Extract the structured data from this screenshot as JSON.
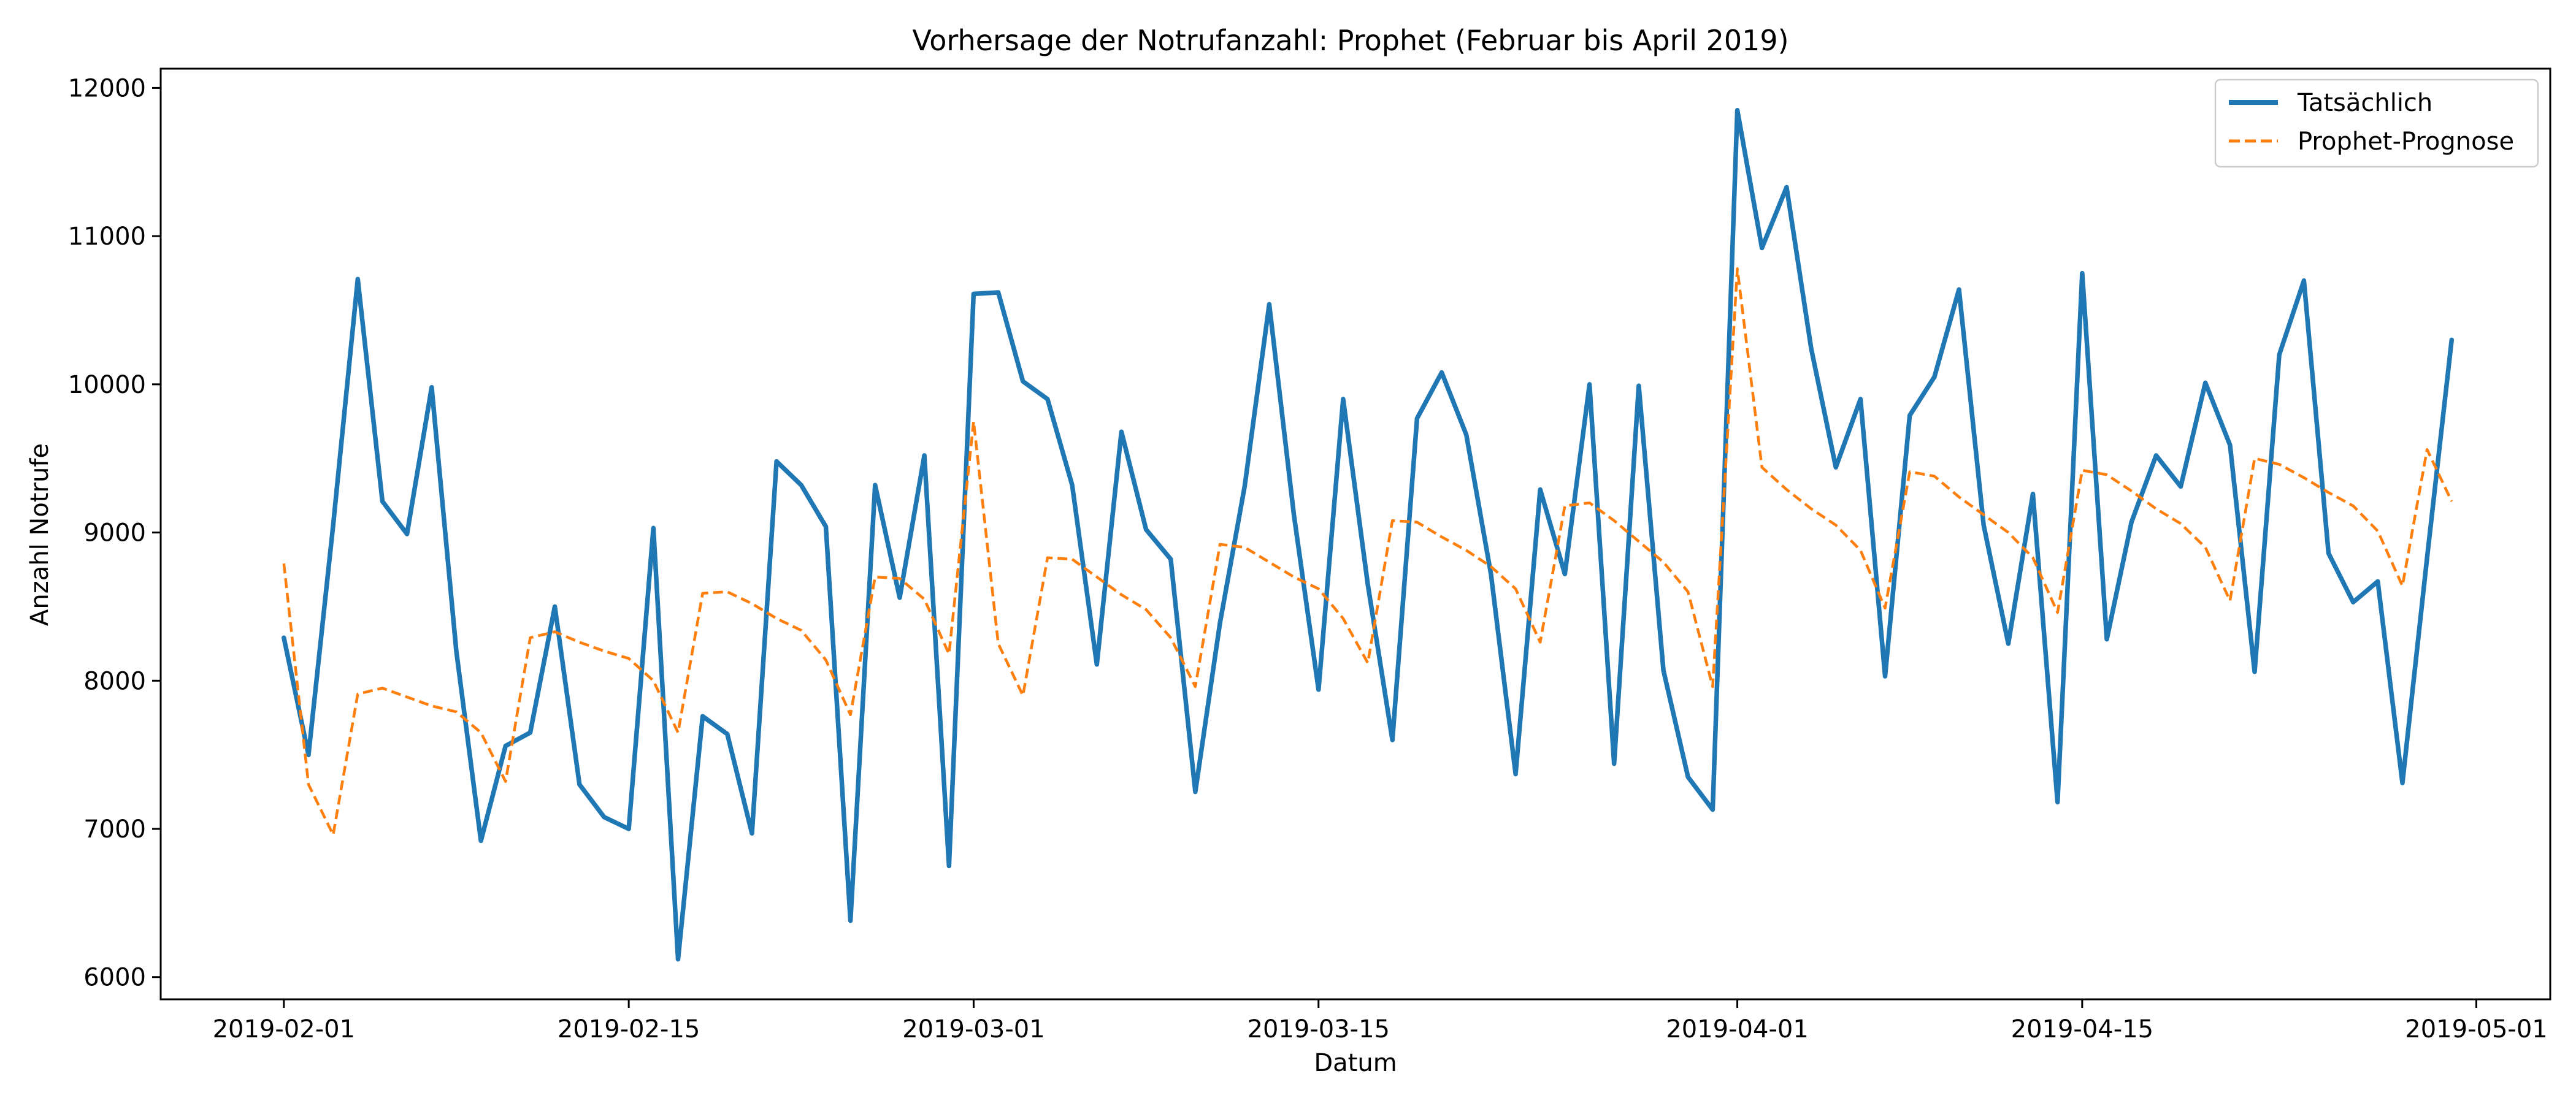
{
  "chart_data": {
    "type": "line",
    "title": "Vorhersage der Notrufanzahl: Prophet (Februar bis April 2019)",
    "xlabel": "Datum",
    "ylabel": "Anzahl Notrufe",
    "x_start": "2019-02-01",
    "x_ticks": [
      "2019-02-01",
      "2019-02-15",
      "2019-03-01",
      "2019-03-15",
      "2019-04-01",
      "2019-04-15",
      "2019-05-01"
    ],
    "y_ticks": [
      6000,
      7000,
      8000,
      9000,
      10000,
      11000,
      12000
    ],
    "xlim": [
      "2019-01-27",
      "2019-05-04"
    ],
    "ylim": [
      5850,
      12130
    ],
    "grid": false,
    "legend_position": "top-right",
    "series": [
      {
        "name": "Tatsächlich",
        "color": "#1f77b4",
        "style": "solid",
        "values": [
          8290,
          7500,
          9050,
          10710,
          9210,
          8990,
          9980,
          8200,
          6920,
          7560,
          7650,
          8500,
          7300,
          7080,
          7000,
          9030,
          6120,
          7760,
          7640,
          6970,
          9480,
          9320,
          9040,
          6380,
          9320,
          8560,
          9520,
          6750,
          10610,
          10620,
          10020,
          9900,
          9320,
          8110,
          9680,
          9020,
          8820,
          7250,
          8390,
          9310,
          10540,
          9120,
          7940,
          9900,
          8650,
          7600,
          9770,
          10080,
          9660,
          8720,
          7370,
          9290,
          8720,
          10000,
          7440,
          9990,
          8070,
          7350,
          7130,
          11850,
          10920,
          11330,
          10240,
          9440,
          9900,
          8030,
          9790,
          10050,
          10640,
          9050,
          8250,
          9260,
          7180,
          10750,
          8280,
          9070,
          9520,
          9310,
          10010,
          9590,
          8060,
          10200,
          10700,
          8860,
          8530,
          8670,
          7310,
          8830,
          10300
        ]
      },
      {
        "name": "Prophet-Prognose",
        "color": "#ff7f0e",
        "style": "dashed",
        "values": [
          8790,
          7300,
          6960,
          7910,
          7950,
          7890,
          7830,
          7790,
          7650,
          7320,
          8290,
          8330,
          8260,
          8200,
          8150,
          8000,
          7650,
          8590,
          8600,
          8520,
          8420,
          8340,
          8140,
          7770,
          8700,
          8690,
          8550,
          8180,
          9750,
          8250,
          7900,
          8830,
          8820,
          8700,
          8580,
          8480,
          8290,
          7960,
          8920,
          8900,
          8800,
          8700,
          8620,
          8420,
          8120,
          9080,
          9070,
          8970,
          8880,
          8770,
          8620,
          8260,
          9180,
          9200,
          9080,
          8940,
          8800,
          8600,
          7960,
          10780,
          9440,
          9290,
          9160,
          9050,
          8880,
          8490,
          9410,
          9380,
          9240,
          9120,
          9000,
          8830,
          8460,
          9420,
          9390,
          9280,
          9160,
          9060,
          8900,
          8540,
          9500,
          9460,
          9370,
          9270,
          9180,
          9010,
          8640,
          9560,
          9210
        ]
      }
    ]
  }
}
